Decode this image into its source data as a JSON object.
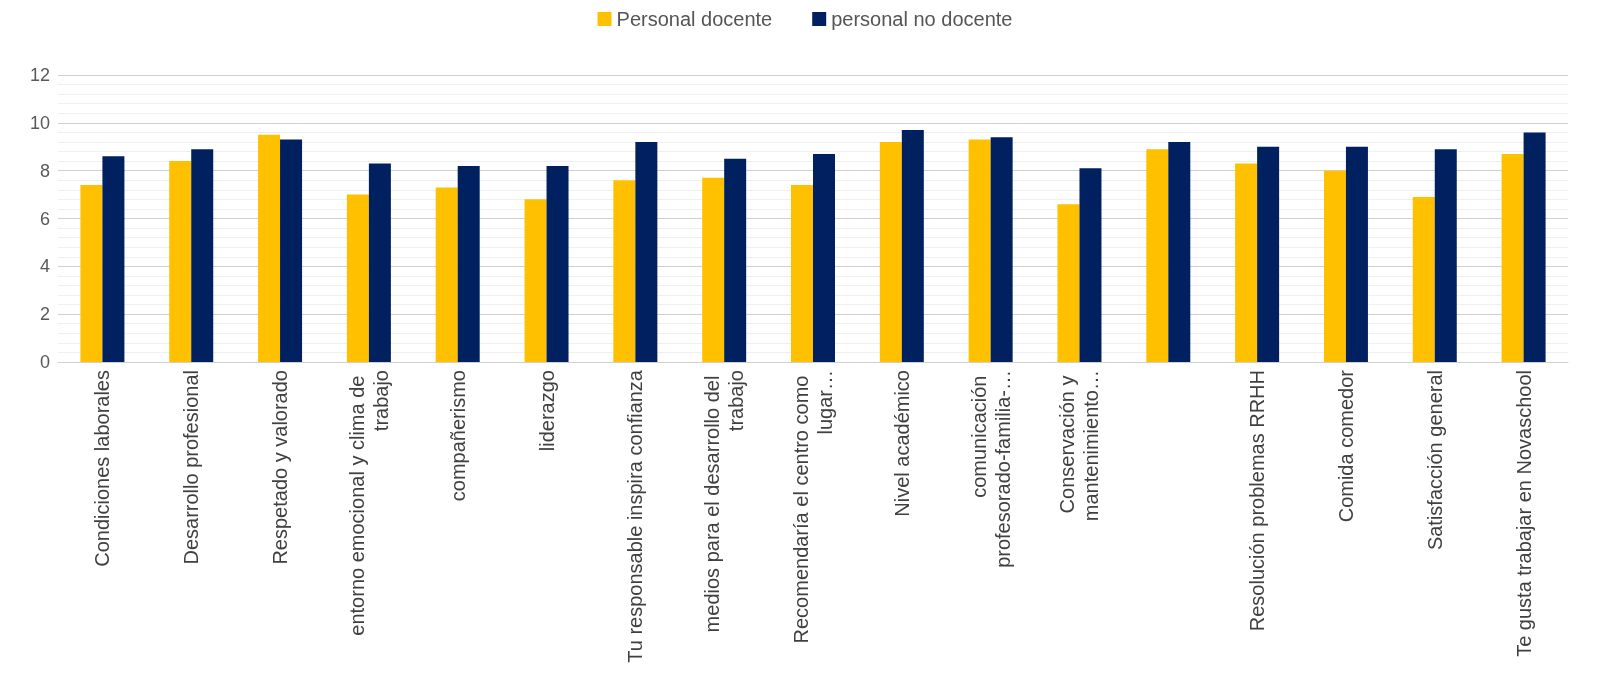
{
  "chart_data": {
    "type": "bar",
    "categories": [
      "Condiciones laborales",
      "Desarrollo profesional",
      "Respetado y valorado",
      "entorno emocional y clima de trabajo",
      "compañerismo",
      "liderazgo",
      "Tu responsable inspira confianza",
      "medios para el desarrollo del trabajo",
      "Recomendaría el centro como lugar…",
      "Nivel académico",
      "comunicación profesorado-familia-…",
      "Conservación y mantenimiento…",
      null,
      "Resolución problemas RRHH",
      "Comida comedor",
      "Satisfacción general",
      "Te gusta trabajar en Novaschool"
    ],
    "series": [
      {
        "name": "Personal docente",
        "color": "#ffc000",
        "values": [
          7.4,
          8.4,
          9.5,
          7.0,
          7.3,
          6.8,
          7.6,
          7.7,
          7.4,
          9.2,
          9.3,
          6.6,
          8.9,
          8.3,
          8.0,
          6.9,
          8.7
        ]
      },
      {
        "name": "personal no docente",
        "color": "#002060",
        "values": [
          8.6,
          8.9,
          9.3,
          8.3,
          8.2,
          8.2,
          9.2,
          8.5,
          8.7,
          9.7,
          9.4,
          8.1,
          9.2,
          9.0,
          9.0,
          8.9,
          9.6
        ]
      }
    ],
    "ylim": [
      0,
      12
    ],
    "yticks": [
      0,
      2,
      4,
      6,
      8,
      10,
      12
    ],
    "grid": "y",
    "legend": "top"
  }
}
